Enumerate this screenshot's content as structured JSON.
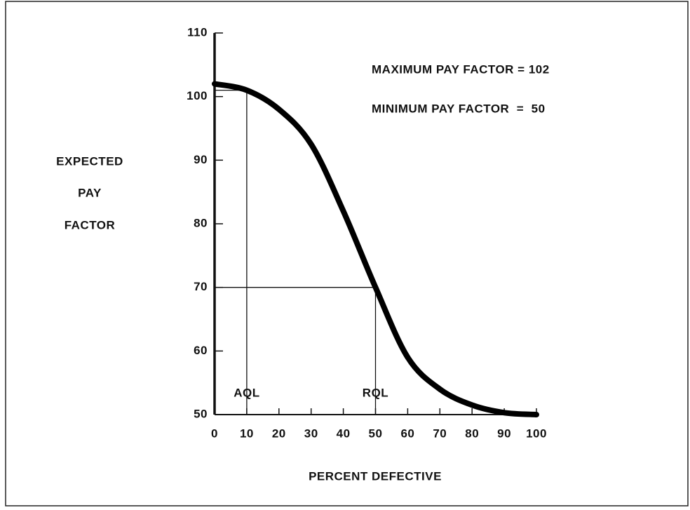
{
  "chart_data": {
    "type": "line",
    "ylabel": [
      "EXPECTED",
      "PAY",
      "FACTOR"
    ],
    "xlabel": "PERCENT DEFECTIVE",
    "annotations": [
      "MAXIMUM PAY FACTOR = 102",
      "MINIMUM PAY FACTOR  =  50"
    ],
    "x": [
      0,
      10,
      20,
      30,
      40,
      50,
      60,
      70,
      80,
      90,
      100
    ],
    "values": [
      102,
      101,
      98,
      92.5,
      82,
      70,
      59,
      54,
      51.5,
      50.3,
      50
    ],
    "color": "#000000",
    "reference_lines": [
      {
        "label": "AQL",
        "x": 10,
        "y": 101
      },
      {
        "label": "RQL",
        "x": 50,
        "y": 70
      }
    ],
    "xlim": [
      0,
      100
    ],
    "xticks": [
      0,
      10,
      20,
      30,
      40,
      50,
      60,
      70,
      80,
      90,
      100
    ],
    "ylim": [
      50,
      110
    ],
    "yticks": [
      50,
      60,
      70,
      80,
      90,
      100,
      110
    ]
  }
}
